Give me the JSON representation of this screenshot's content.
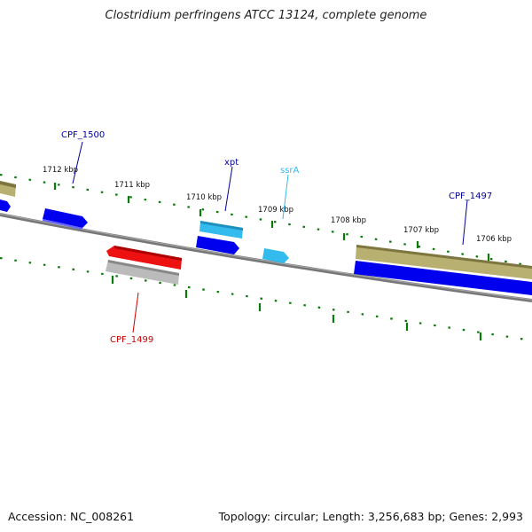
{
  "title": "Clostridium perfringens ATCC 13124, complete genome",
  "footer": {
    "accession": "Accession: NC_008261",
    "summary": "Topology: circular; Length: 3,256,683 bp; Genes: 2,993"
  },
  "ticks": [
    {
      "label": "1712 kbp"
    },
    {
      "label": "1711 kbp"
    },
    {
      "label": "1710 kbp"
    },
    {
      "label": "1709 kbp"
    },
    {
      "label": "1708 kbp"
    },
    {
      "label": "1707 kbp"
    },
    {
      "label": "1706 kbp"
    }
  ],
  "gene_labels": [
    {
      "label": "CPF_1500"
    },
    {
      "label": "xpt"
    },
    {
      "label": "ssrA"
    },
    {
      "label": "CPF_1497"
    },
    {
      "label": "CPF_1499"
    }
  ],
  "colors": {
    "forward_cds": "#0000ee",
    "rna": "#33bbee",
    "reverse_cds": "#ee1111",
    "gene_forward": "#b8b070",
    "gene_reverse": "#bbbbbb",
    "backbone": "#777777",
    "tick": "#0a7a0a",
    "label_blue": "#000099",
    "label_cyan": "#33bbee",
    "label_red": "#cc0000"
  }
}
